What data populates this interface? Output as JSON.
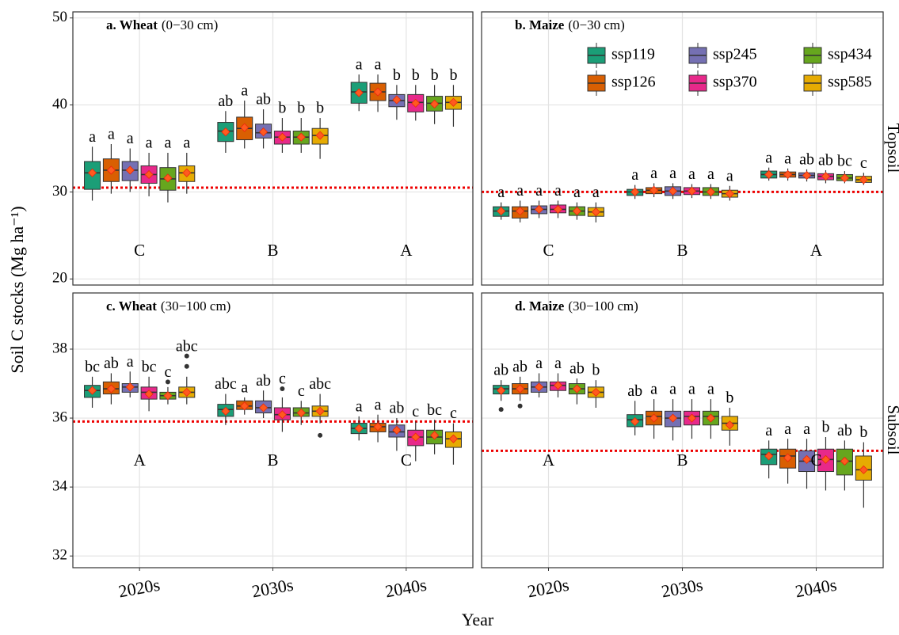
{
  "y_label": "Soil C stocks (Mg ha⁻¹)",
  "x_label": "Year",
  "facet_rows": [
    "Topsoil",
    "Subsoil"
  ],
  "chart_data": [
    {
      "type": "box",
      "title_bold": "a. Wheat",
      "title": "(0−30 cm)",
      "ylim": [
        19.3,
        50.7
      ],
      "yticks": [
        20,
        30,
        40,
        50
      ],
      "grid": true,
      "ref_line": 30.5,
      "group_letters": [
        "C",
        "B",
        "A"
      ],
      "series": [
        {
          "color": "#1b9e77",
          "min": [
            29.0,
            34.5,
            39.3
          ],
          "q1": [
            30.3,
            35.8,
            40.2
          ],
          "median": [
            32.2,
            37.0,
            41.5
          ],
          "q3": [
            33.5,
            38.0,
            42.6
          ],
          "max": [
            35.2,
            39.3,
            43.5
          ],
          "mean": [
            32.2,
            36.9,
            41.4
          ],
          "letters": [
            "a",
            "ab",
            "a"
          ]
        },
        {
          "color": "#d95f02",
          "min": [
            29.8,
            35.0,
            39.2
          ],
          "q1": [
            31.2,
            36.0,
            40.5
          ],
          "median": [
            32.5,
            37.3,
            41.5
          ],
          "q3": [
            33.8,
            38.6,
            42.5
          ],
          "max": [
            35.5,
            40.5,
            43.5
          ],
          "mean": [
            32.5,
            37.4,
            41.5
          ],
          "letters": [
            "a",
            "a",
            "a"
          ]
        },
        {
          "color": "#7570b3",
          "min": [
            30.0,
            35.0,
            38.3
          ],
          "q1": [
            31.3,
            36.2,
            39.8
          ],
          "median": [
            32.5,
            36.8,
            40.5
          ],
          "q3": [
            33.5,
            37.8,
            41.2
          ],
          "max": [
            35.0,
            39.5,
            42.3
          ],
          "mean": [
            32.5,
            36.9,
            40.6
          ],
          "letters": [
            "a",
            "ab",
            "b"
          ]
        },
        {
          "color": "#e7298a",
          "min": [
            29.5,
            34.5,
            38.2
          ],
          "q1": [
            31.0,
            35.5,
            39.2
          ],
          "median": [
            32.0,
            36.3,
            40.3
          ],
          "q3": [
            33.0,
            37.0,
            41.2
          ],
          "max": [
            34.5,
            38.5,
            42.3
          ],
          "mean": [
            32.0,
            36.3,
            40.2
          ],
          "letters": [
            "a",
            "b",
            "b"
          ]
        },
        {
          "color": "#66a61e",
          "min": [
            28.8,
            34.5,
            37.8
          ],
          "q1": [
            30.2,
            35.5,
            39.3
          ],
          "median": [
            31.5,
            36.3,
            40.2
          ],
          "q3": [
            32.8,
            37.0,
            41.0
          ],
          "max": [
            34.5,
            38.5,
            42.3
          ],
          "mean": [
            31.6,
            36.3,
            40.1
          ],
          "letters": [
            "a",
            "b",
            "b"
          ]
        },
        {
          "color": "#e6ab02",
          "min": [
            29.8,
            33.8,
            37.5
          ],
          "q1": [
            31.2,
            35.5,
            39.5
          ],
          "median": [
            32.2,
            36.5,
            40.3
          ],
          "q3": [
            33.0,
            37.3,
            41.0
          ],
          "max": [
            34.5,
            38.5,
            42.3
          ],
          "mean": [
            32.2,
            36.5,
            40.3
          ],
          "letters": [
            "a",
            "b",
            "b"
          ]
        }
      ]
    },
    {
      "type": "box",
      "title_bold": "b. Maize",
      "title": "(0−30 cm)",
      "ylim": [
        19.3,
        50.7
      ],
      "yticks": [
        20,
        30,
        40,
        50
      ],
      "grid": true,
      "ref_line": 30.0,
      "group_letters": [
        "C",
        "B",
        "A"
      ],
      "legend": "top-right",
      "series": [
        {
          "name": "ssp119",
          "color": "#1b9e77",
          "min": [
            26.8,
            29.2,
            31.3
          ],
          "q1": [
            27.2,
            29.6,
            31.6
          ],
          "median": [
            27.8,
            30.0,
            32.0
          ],
          "q3": [
            28.3,
            30.3,
            32.4
          ],
          "max": [
            28.8,
            30.8,
            32.8
          ],
          "mean": [
            27.8,
            30.0,
            32.0
          ],
          "letters": [
            "a",
            "a",
            "a"
          ]
        },
        {
          "name": "ssp126",
          "color": "#d95f02",
          "min": [
            26.5,
            29.4,
            31.3
          ],
          "q1": [
            27.0,
            29.8,
            31.7
          ],
          "median": [
            27.8,
            30.2,
            32.0
          ],
          "q3": [
            28.3,
            30.5,
            32.3
          ],
          "max": [
            29.0,
            31.0,
            32.7
          ],
          "mean": [
            27.8,
            30.2,
            32.0
          ],
          "letters": [
            "a",
            "a",
            "a"
          ]
        },
        {
          "name": "ssp245",
          "color": "#7570b3",
          "min": [
            27.0,
            29.2,
            31.2
          ],
          "q1": [
            27.5,
            29.6,
            31.6
          ],
          "median": [
            28.0,
            30.1,
            31.9
          ],
          "q3": [
            28.4,
            30.6,
            32.2
          ],
          "max": [
            29.0,
            31.0,
            32.6
          ],
          "mean": [
            28.0,
            30.1,
            31.9
          ],
          "letters": [
            "a",
            "a",
            "ab"
          ]
        },
        {
          "name": "ssp370",
          "color": "#e7298a",
          "min": [
            27.0,
            29.3,
            31.0
          ],
          "q1": [
            27.6,
            29.7,
            31.4
          ],
          "median": [
            28.0,
            30.1,
            31.8
          ],
          "q3": [
            28.5,
            30.5,
            32.1
          ],
          "max": [
            29.0,
            30.9,
            32.5
          ],
          "mean": [
            28.0,
            30.1,
            31.8
          ],
          "letters": [
            "a",
            "a",
            "ab"
          ]
        },
        {
          "name": "ssp434",
          "color": "#66a61e",
          "min": [
            26.8,
            29.2,
            31.0
          ],
          "q1": [
            27.3,
            29.6,
            31.3
          ],
          "median": [
            27.8,
            30.0,
            31.6
          ],
          "q3": [
            28.3,
            30.5,
            32.0
          ],
          "max": [
            28.8,
            30.9,
            32.4
          ],
          "mean": [
            27.8,
            30.0,
            31.6
          ],
          "letters": [
            "a",
            "a",
            "bc"
          ]
        },
        {
          "name": "ssp585",
          "color": "#e6ab02",
          "min": [
            26.5,
            29.0,
            30.8
          ],
          "q1": [
            27.2,
            29.4,
            31.1
          ],
          "median": [
            27.7,
            29.8,
            31.4
          ],
          "q3": [
            28.2,
            30.2,
            31.8
          ],
          "max": [
            28.8,
            30.7,
            32.2
          ],
          "mean": [
            27.7,
            29.8,
            31.4
          ],
          "letters": [
            "a",
            "a",
            "c"
          ]
        }
      ]
    },
    {
      "type": "box",
      "title_bold": "c. Wheat",
      "title": "(30−100 cm)",
      "categories": [
        "2020s",
        "2030s",
        "2040s"
      ],
      "ylim": [
        31.66,
        39.63
      ],
      "yticks": [
        32,
        34,
        36,
        38
      ],
      "grid": true,
      "ref_line": 35.9,
      "group_letters": [
        "A",
        "B",
        "C"
      ],
      "series": [
        {
          "color": "#1b9e77",
          "min": [
            36.3,
            35.8,
            35.35
          ],
          "q1": [
            36.6,
            36.05,
            35.55
          ],
          "median": [
            36.8,
            36.25,
            35.7
          ],
          "q3": [
            36.95,
            36.4,
            35.85
          ],
          "max": [
            37.2,
            36.7,
            36.05
          ],
          "mean": [
            36.8,
            36.2,
            35.7
          ],
          "letters": [
            "bc",
            "abc",
            "a"
          ]
        },
        {
          "color": "#d95f02",
          "min": [
            36.4,
            36.1,
            35.3
          ],
          "q1": [
            36.7,
            36.25,
            35.6
          ],
          "median": [
            36.85,
            36.35,
            35.75
          ],
          "q3": [
            37.05,
            36.5,
            35.85
          ],
          "max": [
            37.3,
            36.6,
            36.1
          ],
          "mean": [
            36.85,
            36.35,
            35.75
          ],
          "letters": [
            "ab",
            "a",
            "a"
          ]
        },
        {
          "color": "#7570b3",
          "min": [
            36.6,
            36.0,
            35.05
          ],
          "q1": [
            36.75,
            36.15,
            35.45
          ],
          "median": [
            36.9,
            36.3,
            35.6
          ],
          "q3": [
            37.0,
            36.5,
            35.8
          ],
          "max": [
            37.35,
            36.8,
            36.0
          ],
          "mean": [
            36.9,
            36.3,
            35.65
          ],
          "letters": [
            "a",
            "ab",
            "ab"
          ]
        },
        {
          "color": "#e7298a",
          "min": [
            36.2,
            35.6,
            34.75
          ],
          "q1": [
            36.55,
            35.95,
            35.2
          ],
          "median": [
            36.75,
            36.1,
            35.45
          ],
          "q3": [
            36.9,
            36.3,
            35.65
          ],
          "max": [
            37.2,
            36.6,
            35.9
          ],
          "mean": [
            36.7,
            36.1,
            35.45
          ],
          "letters": [
            "bc",
            "c",
            "c"
          ],
          "outliers": [
            [],
            [
              36.85
            ],
            []
          ]
        },
        {
          "color": "#66a61e",
          "min": [
            36.4,
            35.8,
            34.95
          ],
          "q1": [
            36.55,
            36.05,
            35.25
          ],
          "median": [
            36.65,
            36.15,
            35.45
          ],
          "q3": [
            36.75,
            36.3,
            35.65
          ],
          "max": [
            36.9,
            36.5,
            35.95
          ],
          "mean": [
            36.65,
            36.15,
            35.5
          ],
          "letters": [
            "c",
            "c",
            "bc"
          ],
          "outliers": [
            [
              37.05
            ],
            [],
            []
          ]
        },
        {
          "color": "#e6ab02",
          "min": [
            36.4,
            35.85,
            34.65
          ],
          "q1": [
            36.6,
            36.05,
            35.15
          ],
          "median": [
            36.75,
            36.2,
            35.4
          ],
          "q3": [
            36.9,
            36.35,
            35.6
          ],
          "max": [
            37.2,
            36.7,
            35.85
          ],
          "mean": [
            36.75,
            36.2,
            35.4
          ],
          "letters": [
            "abc",
            "abc",
            "c"
          ],
          "outliers": [
            [
              37.5,
              37.8
            ],
            [
              35.5
            ],
            []
          ]
        }
      ]
    },
    {
      "type": "box",
      "title_bold": "d. Maize",
      "title": "(30−100 cm)",
      "categories": [
        "2020s",
        "2030s",
        "2040s"
      ],
      "ylim": [
        31.66,
        39.63
      ],
      "yticks": [
        32,
        34,
        36,
        38
      ],
      "grid": true,
      "ref_line": 35.05,
      "group_letters": [
        "A",
        "B",
        "C"
      ],
      "series": [
        {
          "color": "#1b9e77",
          "min": [
            36.5,
            35.5,
            34.25
          ],
          "q1": [
            36.7,
            35.75,
            34.65
          ],
          "median": [
            36.85,
            35.95,
            34.95
          ],
          "q3": [
            36.95,
            36.1,
            35.1
          ],
          "max": [
            37.1,
            36.5,
            35.35
          ],
          "mean": [
            36.8,
            35.9,
            34.9
          ],
          "letters": [
            "ab",
            "ab",
            "a"
          ],
          "outliers": [
            [
              36.25
            ],
            [],
            []
          ]
        },
        {
          "color": "#d95f02",
          "min": [
            36.5,
            35.4,
            34.1
          ],
          "q1": [
            36.7,
            35.8,
            34.55
          ],
          "median": [
            36.85,
            36.05,
            34.9
          ],
          "q3": [
            37.0,
            36.2,
            35.1
          ],
          "max": [
            37.2,
            36.55,
            35.4
          ],
          "mean": [
            36.85,
            36.0,
            34.85
          ],
          "letters": [
            "ab",
            "a",
            "a"
          ],
          "outliers": [
            [
              36.35
            ],
            [],
            []
          ]
        },
        {
          "color": "#7570b3",
          "min": [
            36.6,
            35.35,
            33.95
          ],
          "q1": [
            36.75,
            35.75,
            34.45
          ],
          "median": [
            36.9,
            36.0,
            34.75
          ],
          "q3": [
            37.05,
            36.2,
            35.05
          ],
          "max": [
            37.3,
            36.55,
            35.4
          ],
          "mean": [
            36.9,
            36.0,
            34.8
          ],
          "letters": [
            "a",
            "a",
            "a"
          ]
        },
        {
          "color": "#e7298a",
          "min": [
            36.6,
            35.4,
            33.9
          ],
          "q1": [
            36.8,
            35.8,
            34.45
          ],
          "median": [
            36.95,
            36.05,
            34.8
          ],
          "q3": [
            37.05,
            36.2,
            35.1
          ],
          "max": [
            37.3,
            36.55,
            35.45
          ],
          "mean": [
            36.95,
            36.0,
            34.8
          ],
          "letters": [
            "a",
            "a",
            "b"
          ]
        },
        {
          "color": "#66a61e",
          "min": [
            36.4,
            35.4,
            33.9
          ],
          "q1": [
            36.7,
            35.8,
            34.35
          ],
          "median": [
            36.85,
            36.05,
            34.75
          ],
          "q3": [
            37.0,
            36.2,
            35.1
          ],
          "max": [
            37.15,
            36.55,
            35.35
          ],
          "mean": [
            36.85,
            36.0,
            34.75
          ],
          "letters": [
            "ab",
            "a",
            "ab"
          ]
        },
        {
          "color": "#e6ab02",
          "min": [
            36.3,
            35.2,
            33.4
          ],
          "q1": [
            36.6,
            35.65,
            34.2
          ],
          "median": [
            36.75,
            35.85,
            34.5
          ],
          "q3": [
            36.9,
            36.05,
            34.9
          ],
          "max": [
            37.1,
            36.3,
            35.3
          ],
          "mean": [
            36.75,
            35.8,
            34.5
          ],
          "letters": [
            "b",
            "b",
            "b"
          ]
        }
      ]
    }
  ]
}
